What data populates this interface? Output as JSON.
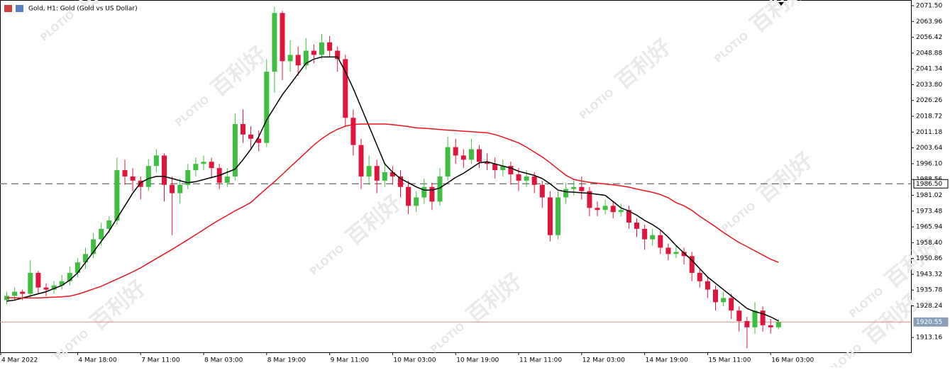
{
  "chart_data": {
    "type": "candlestick",
    "title": "Gold, H1:  Gold (Gold vs US Dollar)",
    "up_color": "#3fbf3f",
    "down_color": "#e0143c",
    "ylim": [
      1906.1,
      2074.2
    ],
    "yticks": [
      {
        "value": 2071.5,
        "label": "2071.50"
      },
      2063.96,
      2056.42,
      2048.88,
      2041.34,
      {
        "value": 2033.8,
        "label": "2033.80"
      },
      2026.26,
      2018.72,
      2011.18,
      2003.64,
      {
        "value": 1996.1,
        "label": "1996.10"
      },
      1988.56,
      1981.02,
      1973.48,
      1965.94,
      {
        "value": 1958.4,
        "label": "1958.40"
      },
      1950.86,
      1943.32,
      1935.78,
      1928.24,
      1913.16
    ],
    "x_labels": [
      "4 Mar 2022",
      "4 Mar 18:00",
      "7 Mar 11:00",
      "8 Mar 03:00",
      "8 Mar 19:00",
      "9 Mar 11:00",
      "10 Mar 03:00",
      "10 Mar 19:00",
      "11 Mar 11:00",
      "12 Mar 03:00",
      "14 Mar 19:00",
      "15 Mar 11:00",
      "16 Mar 03:00"
    ],
    "ohlc": [
      [
        1931,
        1935,
        1929,
        1933
      ],
      [
        1933,
        1937,
        1931,
        1935
      ],
      [
        1935,
        1936,
        1931,
        1934
      ],
      [
        1934,
        1950,
        1932,
        1944
      ],
      [
        1944,
        1945,
        1934,
        1937
      ],
      [
        1937,
        1939,
        1933,
        1936
      ],
      [
        1936,
        1940,
        1934,
        1938
      ],
      [
        1938,
        1943,
        1936,
        1940
      ],
      [
        1940,
        1947,
        1938,
        1944
      ],
      [
        1944,
        1951,
        1942,
        1949
      ],
      [
        1949,
        1956,
        1946,
        1953
      ],
      [
        1953,
        1963,
        1951,
        1960
      ],
      [
        1960,
        1968,
        1957,
        1965
      ],
      [
        1965,
        1971,
        1963,
        1969
      ],
      [
        1969,
        1999,
        1967,
        1993
      ],
      [
        1993,
        1998,
        1986,
        1990
      ],
      [
        1990,
        1994,
        1983,
        1988
      ],
      [
        1988,
        1990,
        1979,
        1985
      ],
      [
        1985,
        1998,
        1983,
        1995
      ],
      [
        1995,
        2003,
        1992,
        2000
      ],
      [
        2000,
        2001,
        1978,
        1986
      ],
      [
        1986,
        1990,
        1962,
        1982
      ],
      [
        1982,
        1989,
        1977,
        1986
      ],
      [
        1986,
        1996,
        1984,
        1993
      ],
      [
        1993,
        1999,
        1990,
        1996
      ],
      [
        1996,
        2000,
        1993,
        1997
      ],
      [
        1997,
        1999,
        1989,
        1994
      ],
      [
        1994,
        1996,
        1984,
        1987
      ],
      [
        1987,
        1994,
        1985,
        1990
      ],
      [
        1990,
        2020,
        1988,
        2015
      ],
      [
        2015,
        2022,
        2006,
        2010
      ],
      [
        2010,
        2014,
        2003,
        2008
      ],
      [
        2008,
        2012,
        2002,
        2006
      ],
      [
        2006,
        2046,
        2004,
        2040
      ],
      [
        2040,
        2071,
        2030,
        2068
      ],
      [
        2068,
        2069,
        2036,
        2045
      ],
      [
        2045,
        2055,
        2040,
        2048
      ],
      [
        2048,
        2052,
        2038,
        2043
      ],
      [
        2043,
        2056,
        2041,
        2050
      ],
      [
        2050,
        2053,
        2044,
        2048
      ],
      [
        2048,
        2058,
        2046,
        2054
      ],
      [
        2054,
        2057,
        2047,
        2050
      ],
      [
        2050,
        2052,
        2040,
        2046
      ],
      [
        2046,
        2048,
        2014,
        2018
      ],
      [
        2018,
        2022,
        2000,
        2005
      ],
      [
        2005,
        2008,
        1984,
        1990
      ],
      [
        1990,
        2000,
        1986,
        1995
      ],
      [
        1995,
        1998,
        1982,
        1988
      ],
      [
        1988,
        1996,
        1985,
        1992
      ],
      [
        1992,
        1995,
        1986,
        1990
      ],
      [
        1990,
        1993,
        1980,
        1985
      ],
      [
        1985,
        1988,
        1972,
        1976
      ],
      [
        1976,
        1983,
        1973,
        1980
      ],
      [
        1980,
        1989,
        1977,
        1985
      ],
      [
        1985,
        1987,
        1974,
        1978
      ],
      [
        1978,
        1994,
        1976,
        1990
      ],
      [
        1990,
        2009,
        1988,
        2004
      ],
      [
        2004,
        2008,
        1996,
        2000
      ],
      [
        2000,
        2003,
        1994,
        1998
      ],
      [
        1998,
        2008,
        1996,
        2003
      ],
      [
        2003,
        2005,
        1994,
        1997
      ],
      [
        1997,
        2001,
        1993,
        1996
      ],
      [
        1996,
        1999,
        1989,
        1993
      ],
      [
        1993,
        1998,
        1990,
        1995
      ],
      [
        1995,
        1997,
        1986,
        1991
      ],
      [
        1991,
        1994,
        1983,
        1988
      ],
      [
        1988,
        1993,
        1985,
        1990
      ],
      [
        1990,
        1992,
        1982,
        1986
      ],
      [
        1986,
        1988,
        1975,
        1980
      ],
      [
        1980,
        1983,
        1959,
        1962
      ],
      [
        1962,
        1983,
        1960,
        1980
      ],
      [
        1980,
        1987,
        1977,
        1984
      ],
      [
        1984,
        1988,
        1981,
        1985
      ],
      [
        1985,
        1990,
        1979,
        1983
      ],
      [
        1983,
        1985,
        1971,
        1975
      ],
      [
        1975,
        1978,
        1971,
        1974
      ],
      [
        1974,
        1979,
        1972,
        1976
      ],
      [
        1976,
        1978,
        1970,
        1973
      ],
      [
        1973,
        1977,
        1971,
        1974
      ],
      [
        1974,
        1976,
        1965,
        1968
      ],
      [
        1968,
        1970,
        1961,
        1965
      ],
      [
        1965,
        1967,
        1955,
        1960
      ],
      [
        1960,
        1965,
        1957,
        1962
      ],
      [
        1962,
        1964,
        1953,
        1956
      ],
      [
        1956,
        1958,
        1950,
        1953
      ],
      [
        1953,
        1957,
        1951,
        1954
      ],
      [
        1954,
        1956,
        1948,
        1952
      ],
      [
        1952,
        1954,
        1940,
        1944
      ],
      [
        1944,
        1946,
        1937,
        1940
      ],
      [
        1940,
        1942,
        1932,
        1936
      ],
      [
        1936,
        1938,
        1926,
        1930
      ],
      [
        1930,
        1935,
        1928,
        1932
      ],
      [
        1932,
        1934,
        1922,
        1926
      ],
      [
        1926,
        1928,
        1916,
        1921
      ],
      [
        1921,
        1923,
        1908,
        1918
      ],
      [
        1918,
        1930,
        1915,
        1926
      ],
      [
        1926,
        1928,
        1916,
        1919
      ],
      [
        1919,
        1922,
        1915,
        1918
      ],
      [
        1918,
        1922,
        1917,
        1920.55
      ]
    ],
    "series": [
      {
        "color": "#000000",
        "values": [
          1930.5,
          1931,
          1932,
          1933,
          1934,
          1935,
          1936.5,
          1938,
          1940.5,
          1944,
          1949,
          1954,
          1959,
          1964,
          1970,
          1976,
          1982,
          1987,
          1989,
          1990,
          1990,
          1989,
          1988,
          1987,
          1987.5,
          1988.5,
          1989.5,
          1990.5,
          1992,
          1993.5,
          1998,
          2003,
          2009,
          2017,
          2023,
          2029,
          2034,
          2039,
          2044,
          2046,
          2047,
          2047,
          2047,
          2040,
          2032,
          2023,
          2014,
          2005,
          1996,
          1992,
          1989,
          1987,
          1985,
          1983.5,
          1983.5,
          1984.5,
          1987,
          1989.5,
          1991.5,
          1994,
          1996.5,
          1997,
          1996,
          1995,
          1994,
          1992.5,
          1991.5,
          1990.5,
          1989,
          1986.5,
          1983.5,
          1982.7,
          1982.5,
          1982.2,
          1982,
          1981.5,
          1981,
          1978,
          1975,
          1973.5,
          1971.5,
          1969,
          1967,
          1964.5,
          1961,
          1957,
          1953.5,
          1950,
          1946,
          1942,
          1939,
          1936,
          1933,
          1930,
          1927,
          1925.5,
          1924.5,
          1923,
          1921
        ]
      },
      {
        "color": "#e8141e",
        "values": [
          1932.1,
          1932.1,
          1932,
          1932,
          1932,
          1932.2,
          1932.4,
          1932.6,
          1932.9,
          1933.8,
          1935,
          1936.3,
          1937.6,
          1939.3,
          1941,
          1942.7,
          1944.5,
          1946.4,
          1948.6,
          1950.8,
          1953,
          1955.2,
          1957.5,
          1959.8,
          1962.2,
          1964.6,
          1967,
          1969.3,
          1971.4,
          1973.6,
          1975.5,
          1977.6,
          1981,
          1984.3,
          1987.5,
          1991,
          1994.5,
          1998,
          2001.5,
          2005,
          2008,
          2010.5,
          2012.5,
          2014,
          2014.8,
          2015,
          2015,
          2015,
          2015,
          2014.7,
          2014.3,
          2013.8,
          2013.2,
          2013,
          2012.7,
          2012.4,
          2012.1,
          2011.9,
          2011.6,
          2011.4,
          2011.1,
          2010.8,
          2010,
          2008.8,
          2007.4,
          2006,
          2004,
          2001.6,
          1999.3,
          1996.5,
          1993.5,
          1990.6,
          1988.6,
          1987.8,
          1987.2,
          1986.8,
          1986.4,
          1986,
          1985.5,
          1984.9,
          1984,
          1983.2,
          1982.4,
          1981.4,
          1979.8,
          1977.5,
          1976,
          1973.8,
          1971,
          1968.5,
          1966,
          1963.3,
          1960.8,
          1958.5,
          1956.5,
          1954.5,
          1952.5,
          1950.5,
          1949
        ]
      }
    ],
    "hlines": [
      {
        "value": 1986.5,
        "label": "1986.50",
        "style": "dashed",
        "color": "#777777"
      },
      {
        "value": 1920.55,
        "label": "1920.55",
        "style": "solid",
        "color": "#e88a8a"
      }
    ]
  },
  "watermark": {
    "brand": "PLOTIO",
    "text": "百利好"
  }
}
